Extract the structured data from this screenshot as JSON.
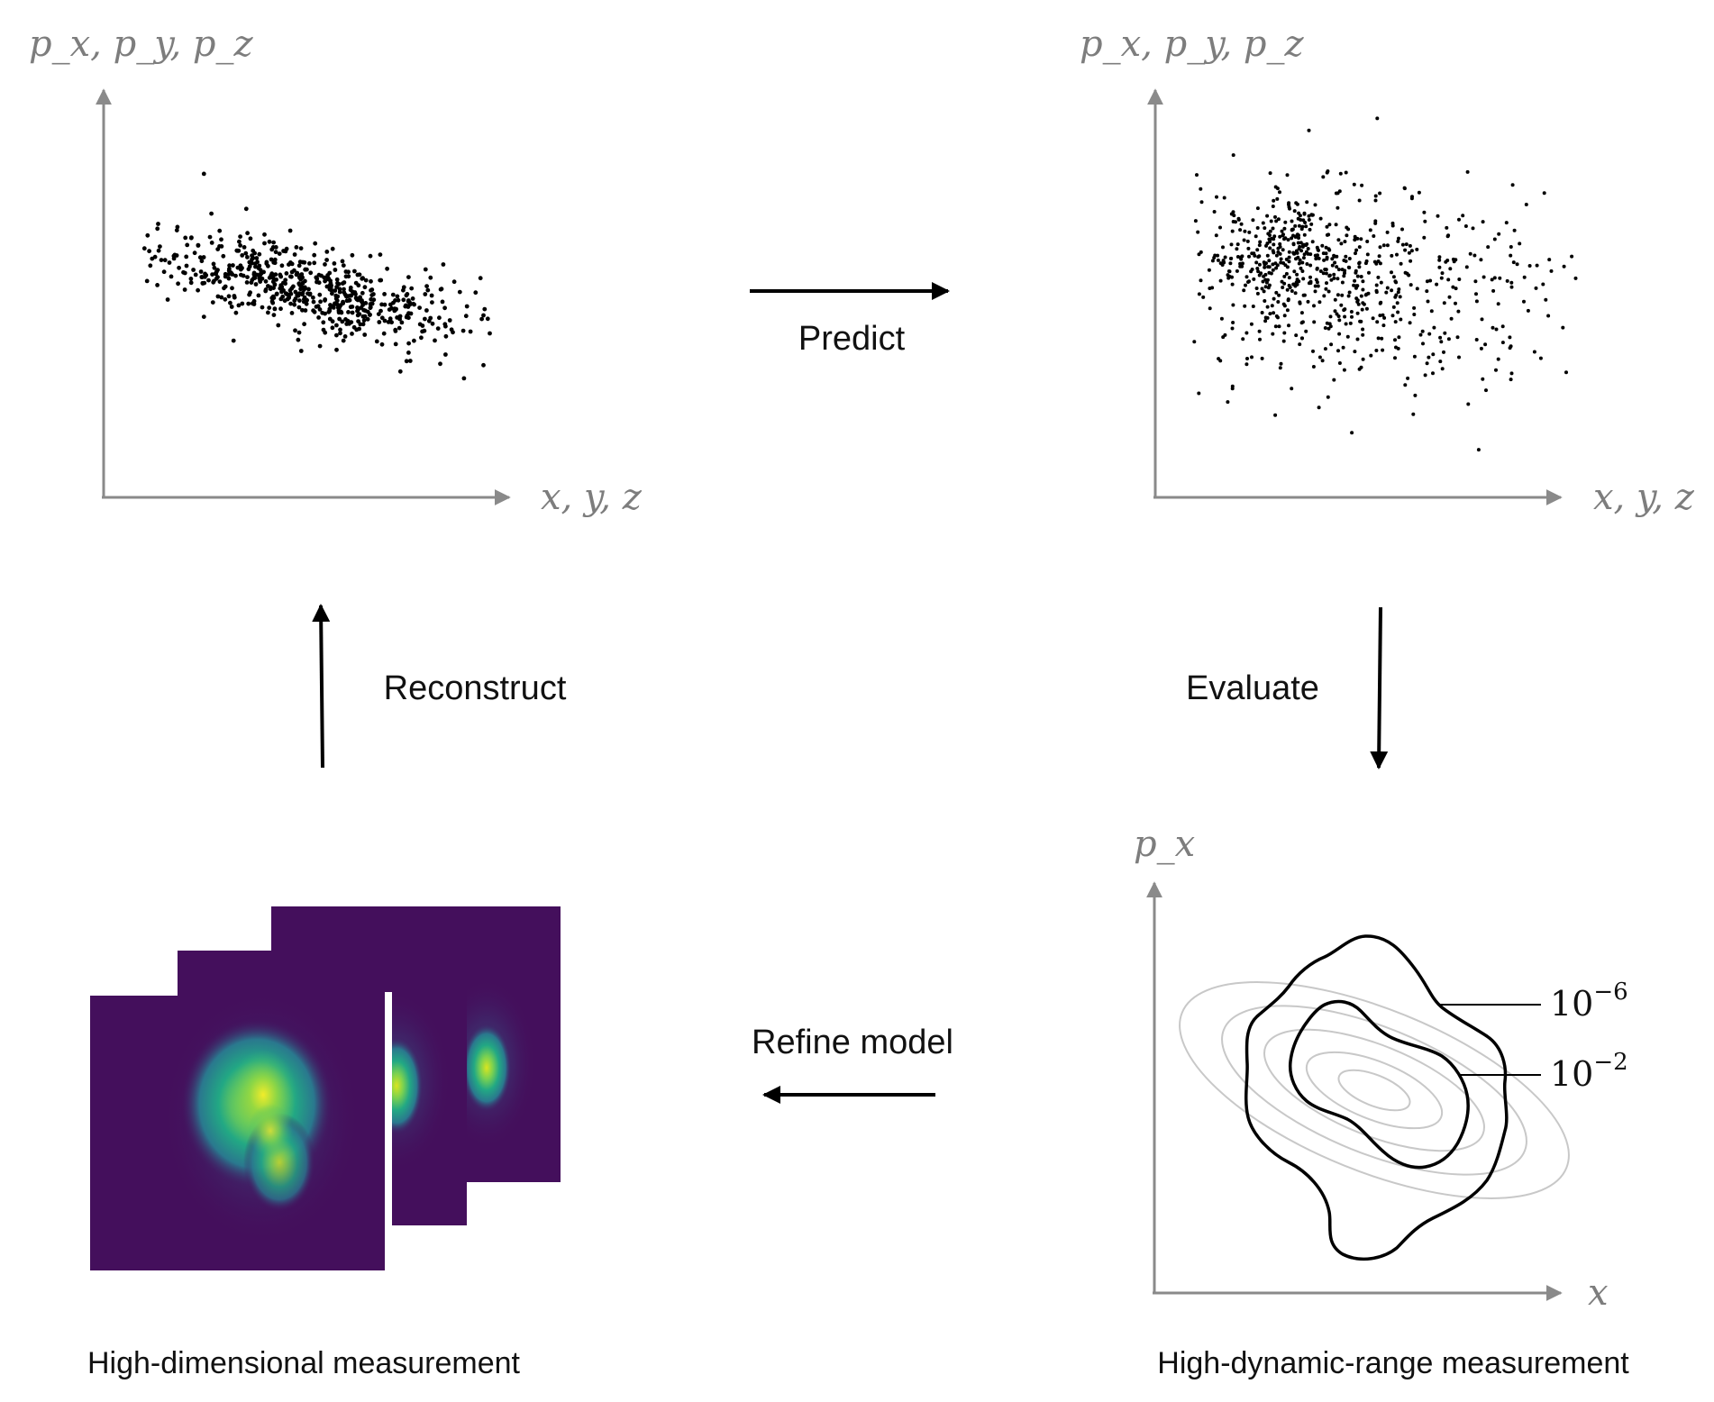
{
  "plots": {
    "top_left": {
      "y_label": "p_x, p_y, p_z",
      "x_label": "x, y, z"
    },
    "top_right": {
      "y_label": "p_x, p_y, p_z",
      "x_label": "x, y, z"
    },
    "bottom_right": {
      "y_label": "p_x",
      "x_label": "x",
      "contour_labels": [
        {
          "base": "10",
          "exponent": "−6"
        },
        {
          "base": "10",
          "exponent": "−2"
        }
      ]
    }
  },
  "steps": {
    "predict": "Predict",
    "evaluate": "Evaluate",
    "refine": "Refine model",
    "reconstruct": "Reconstruct"
  },
  "captions": {
    "left": "High-dimensional measurement",
    "right": "High-dynamic-range measurement"
  },
  "colors": {
    "axis": "#8a8a8a",
    "ink": "#000000",
    "image_background": "#440f5c",
    "image_ramp": [
      "#440f5c",
      "#3b528b",
      "#21908d",
      "#5dc963",
      "#c8e020"
    ],
    "ellipse_gray": "#c8c8c8"
  }
}
